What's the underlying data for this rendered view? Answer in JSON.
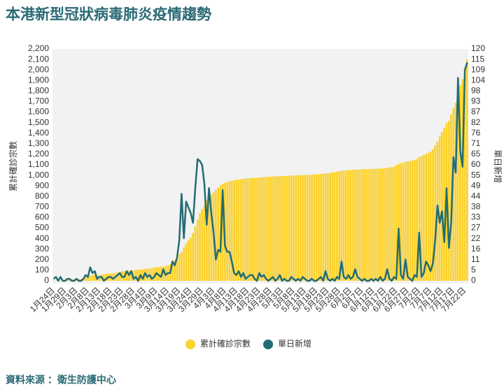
{
  "title": "本港新型冠狀病毒肺炎疫情趨勢",
  "source": "資料來源 ：衛生防護中心",
  "chart_data": {
    "type": "bar",
    "ylabel": "累計確診宗數",
    "y2label": "單日新增",
    "categories": [
      "1月24日",
      null,
      null,
      null,
      null,
      "1月29日",
      null,
      null,
      null,
      null,
      "2月3日",
      null,
      null,
      null,
      null,
      "2月8日",
      null,
      null,
      null,
      null,
      "2月13日",
      null,
      null,
      null,
      null,
      "2月18日",
      null,
      null,
      null,
      null,
      "2月23日",
      null,
      null,
      null,
      null,
      "2月28日",
      null,
      null,
      null,
      null,
      "3月4日",
      null,
      null,
      null,
      null,
      "3月9日",
      null,
      null,
      null,
      null,
      "3月14日",
      null,
      null,
      null,
      null,
      "3月19日",
      null,
      null,
      null,
      null,
      "3月24日",
      null,
      null,
      null,
      null,
      "3月29日",
      null,
      null,
      null,
      null,
      "4月3日",
      null,
      null,
      null,
      null,
      "4月8日",
      null,
      null,
      null,
      null,
      "4月13日",
      null,
      null,
      null,
      null,
      "4月18日",
      null,
      null,
      null,
      null,
      "4月23日",
      null,
      null,
      null,
      null,
      "4月28日",
      null,
      null,
      null,
      null,
      "5月3日",
      null,
      null,
      null,
      null,
      "5月8日",
      null,
      null,
      null,
      null,
      "5月13日",
      null,
      null,
      null,
      null,
      "5月18日",
      null,
      null,
      null,
      null,
      "5月23日",
      null,
      null,
      null,
      null,
      "5月28日",
      null,
      null,
      null,
      null,
      "6月2日",
      null,
      null,
      null,
      null,
      "6月7日",
      null,
      null,
      null,
      null,
      "6月12日",
      null,
      null,
      null,
      null,
      "6月17日",
      null,
      null,
      null,
      null,
      "6月22日",
      null,
      null,
      null,
      null,
      "6月27日",
      null,
      null,
      null,
      null,
      "7月2日",
      null,
      null,
      null,
      null,
      "7月7日",
      null,
      null,
      null,
      null,
      "7月12日",
      null,
      null,
      null,
      null,
      "7月17日",
      null,
      null,
      null,
      null,
      "7月22日",
      null
    ],
    "series": [
      {
        "name": "累計確診宗數",
        "type": "bar",
        "color": "#fcd22e",
        "values": [
          2,
          2,
          5,
          5,
          5,
          8,
          8,
          10,
          12,
          13,
          15,
          17,
          18,
          24,
          36,
          42,
          49,
          53,
          56,
          56,
          57,
          60,
          62,
          65,
          68,
          69,
          70,
          74,
          81,
          85,
          91,
          93,
          94,
          95,
          98,
          100,
          104,
          105,
          107,
          109,
          114,
          115,
          115,
          120,
          126,
          129,
          131,
          134,
          137,
          141,
          148,
          157,
          167,
          192,
          208,
          256,
          273,
          317,
          356,
          386,
          410,
          453,
          518,
          582,
          641,
          682,
          714,
          765,
          802,
          820,
          840,
          865,
          885,
          905,
          920,
          930,
          938,
          945,
          950,
          955,
          958,
          962,
          965,
          968,
          970,
          972,
          974,
          975,
          977,
          978,
          980,
          982,
          984,
          985,
          987,
          988,
          990,
          991,
          992,
          993,
          994,
          995,
          996,
          997,
          998,
          999,
          1000,
          1001,
          1002,
          1003,
          1004,
          1005,
          1006,
          1007,
          1008,
          1010,
          1012,
          1014,
          1016,
          1018,
          1020,
          1024,
          1028,
          1032,
          1036,
          1040,
          1043,
          1046,
          1048,
          1050,
          1052,
          1054,
          1055,
          1056,
          1057,
          1058,
          1059,
          1060,
          1060,
          1061,
          1062,
          1063,
          1064,
          1065,
          1066,
          1067,
          1073,
          1076,
          1079,
          1082,
          1100,
          1108,
          1115,
          1120,
          1130,
          1133,
          1136,
          1140,
          1148,
          1155,
          1175,
          1185,
          1195,
          1205,
          1213,
          1226,
          1247,
          1286,
          1322,
          1370,
          1410,
          1450,
          1498,
          1515,
          1579,
          1635,
          1691,
          1796,
          1855,
          1914,
          2023,
          2100
        ]
      },
      {
        "name": "單日新增",
        "type": "line",
        "axis": "y2",
        "color": "#236c74",
        "values": [
          1,
          2,
          0,
          2,
          0,
          0,
          1,
          1,
          0,
          0,
          1,
          0,
          0,
          1,
          3,
          2,
          7,
          4,
          5,
          1,
          2,
          2,
          0,
          1,
          2,
          2,
          1,
          2,
          3,
          4,
          2,
          2,
          5,
          3,
          5,
          1,
          2,
          0,
          3,
          1,
          4,
          2,
          3,
          1,
          2,
          4,
          3,
          2,
          6,
          3,
          4,
          4,
          10,
          8,
          12,
          21,
          45,
          22,
          41,
          38,
          35,
          30,
          48,
          63,
          62,
          60,
          50,
          29,
          48,
          35,
          25,
          11,
          16,
          15,
          47,
          18,
          15,
          15,
          10,
          4,
          3,
          5,
          2,
          4,
          1,
          2,
          3,
          3,
          1,
          0,
          4,
          2,
          3,
          1,
          0,
          1,
          2,
          0,
          1,
          3,
          0,
          1,
          0,
          0,
          2,
          1,
          0,
          1,
          0,
          2,
          1,
          0,
          0,
          1,
          0,
          0,
          1,
          2,
          0,
          5,
          1,
          0,
          1,
          0,
          2,
          1,
          10,
          2,
          1,
          3,
          1,
          2,
          6,
          2,
          1,
          0,
          1,
          0,
          0,
          1,
          0,
          1,
          0,
          2,
          0,
          1,
          6,
          1,
          0,
          2,
          1,
          27,
          3,
          1,
          11,
          2,
          1,
          0,
          3,
          2,
          25,
          2,
          4,
          10,
          8,
          5,
          9,
          21,
          39,
          30,
          36,
          20,
          48,
          17,
          30,
          64,
          56,
          105,
          67,
          59,
          109,
          113
        ]
      }
    ],
    "ylim": [
      0,
      2200
    ],
    "yticks": [
      0,
      100,
      200,
      300,
      400,
      500,
      600,
      700,
      800,
      900,
      {
        "value": 1000,
        "label": "1,000"
      },
      {
        "value": 1100,
        "label": "1,100"
      },
      {
        "value": 1200,
        "label": "1,200"
      },
      {
        "value": 1300,
        "label": "1,300"
      },
      {
        "value": 1400,
        "label": "1,400"
      },
      {
        "value": 1500,
        "label": "1,500"
      },
      {
        "value": 1600,
        "label": "1,600"
      },
      {
        "value": 1700,
        "label": "1,700"
      },
      {
        "value": 1800,
        "label": "1,800"
      },
      {
        "value": 1900,
        "label": "1,900"
      },
      {
        "value": 2000,
        "label": "2,000"
      },
      {
        "value": 2100,
        "label": "2,100"
      },
      {
        "value": 2200,
        "label": "2,200"
      }
    ],
    "y2lim": [
      0,
      120
    ],
    "y2ticks": [
      0,
      {
        "value": 5.45,
        "label": "5"
      },
      {
        "value": 10.91,
        "label": "11"
      },
      {
        "value": 16.36,
        "label": "16"
      },
      {
        "value": 21.82,
        "label": "22"
      },
      {
        "value": 27.27,
        "label": "27"
      },
      {
        "value": 32.73,
        "label": "33"
      },
      {
        "value": 38.18,
        "label": "38"
      },
      {
        "value": 43.64,
        "label": "44"
      },
      {
        "value": 49.09,
        "label": "49"
      },
      {
        "value": 54.55,
        "label": "55"
      },
      60,
      {
        "value": 65.45,
        "label": "65"
      },
      {
        "value": 70.91,
        "label": "71"
      },
      {
        "value": 76.36,
        "label": "76"
      },
      {
        "value": 81.82,
        "label": "82"
      },
      {
        "value": 87.27,
        "label": "87"
      },
      {
        "value": 92.73,
        "label": "93"
      },
      {
        "value": 98.18,
        "label": "98"
      },
      {
        "value": 103.64,
        "label": "104"
      },
      {
        "value": 109.09,
        "label": "109"
      },
      {
        "value": 114.55,
        "label": "115"
      },
      120
    ],
    "legend": "bottom"
  }
}
